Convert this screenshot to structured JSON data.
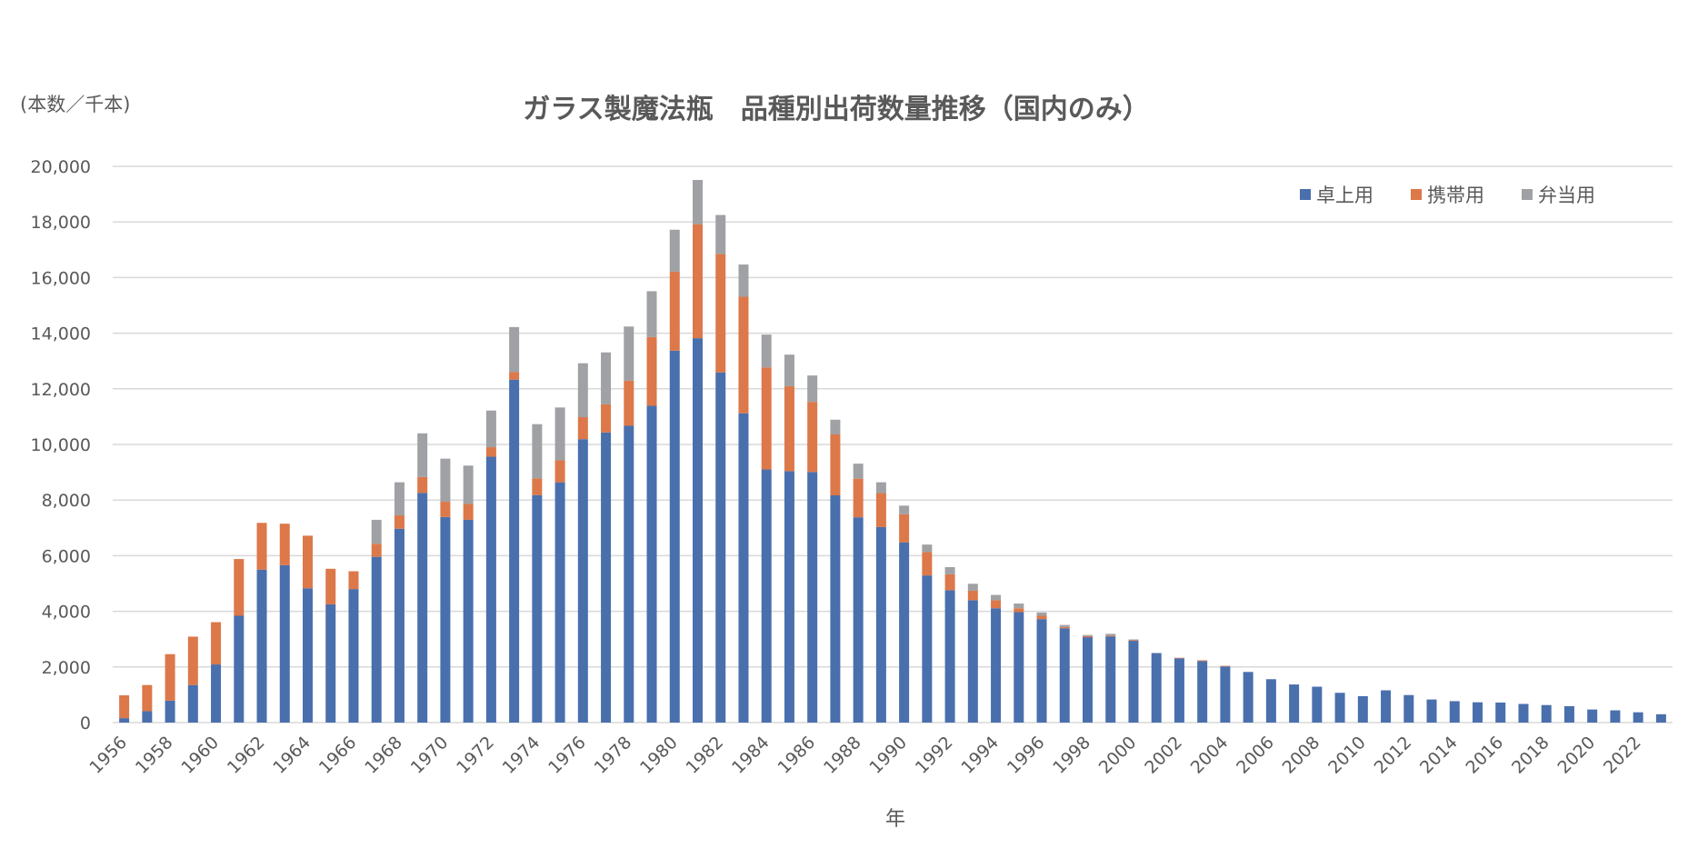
{
  "chart_data": {
    "type": "bar",
    "stacked": true,
    "title": "ガラス製魔法瓶　品種別出荷数量推移（国内のみ）",
    "ylabel": "(本数／千本)",
    "xlabel": "年",
    "ylim": [
      0,
      20000
    ],
    "yticks": [
      "0",
      "2,000",
      "4,000",
      "6,000",
      "8,000",
      "10,000",
      "12,000",
      "14,000",
      "16,000",
      "18,000",
      "20,000"
    ],
    "grid": true,
    "legend_position": "top-right",
    "categories": [
      1956,
      1957,
      1958,
      1959,
      1960,
      1961,
      1962,
      1963,
      1964,
      1965,
      1966,
      1967,
      1968,
      1969,
      1970,
      1971,
      1972,
      1973,
      1974,
      1975,
      1976,
      1977,
      1978,
      1979,
      1980,
      1981,
      1982,
      1983,
      1984,
      1985,
      1986,
      1987,
      1988,
      1989,
      1990,
      1991,
      1992,
      1993,
      1994,
      1995,
      1996,
      1997,
      1998,
      1999,
      2000,
      2001,
      2002,
      2003,
      2004,
      2005,
      2006,
      2007,
      2008,
      2009,
      2010,
      2011,
      2012,
      2013,
      2014,
      2015,
      2016,
      2017,
      2018,
      2019,
      2020,
      2021,
      2022,
      2023
    ],
    "series": [
      {
        "name": "卓上用",
        "color": "#4a6fad",
        "values": [
          160,
          410,
          790,
          1350,
          2090,
          3840,
          5500,
          5660,
          4830,
          4250,
          4800,
          5960,
          6970,
          8260,
          7390,
          7290,
          9560,
          12330,
          8180,
          8640,
          10190,
          10430,
          10670,
          11390,
          13370,
          13820,
          12590,
          11120,
          9100,
          9040,
          9010,
          8170,
          7380,
          7030,
          6480,
          5290,
          4760,
          4400,
          4110,
          3970,
          3720,
          3390,
          3070,
          3100,
          2940,
          2500,
          2310,
          2210,
          2020,
          1820,
          1560,
          1370,
          1290,
          1070,
          950,
          1160,
          990,
          830,
          770,
          730,
          720,
          670,
          630,
          590,
          470,
          440,
          370,
          300
        ]
      },
      {
        "name": "携帯用",
        "color": "#dc7849",
        "values": [
          820,
          940,
          1670,
          1740,
          1520,
          2040,
          1680,
          1490,
          1890,
          1280,
          640,
          470,
          480,
          570,
          550,
          570,
          340,
          270,
          600,
          790,
          790,
          1010,
          1620,
          2470,
          2840,
          4100,
          4260,
          4190,
          3670,
          3050,
          2520,
          2190,
          1390,
          1220,
          1010,
          840,
          570,
          340,
          290,
          140,
          120,
          50,
          40,
          30,
          30,
          0,
          20,
          30,
          20,
          0,
          0,
          0,
          0,
          0,
          0,
          0,
          0,
          0,
          0,
          0,
          0,
          0,
          0,
          0,
          0,
          0,
          0,
          0
        ]
      },
      {
        "name": "弁当用",
        "color": "#a0a1a4",
        "values": [
          0,
          0,
          0,
          0,
          0,
          0,
          0,
          0,
          0,
          0,
          0,
          860,
          1190,
          1570,
          1550,
          1380,
          1320,
          1620,
          1950,
          1900,
          1940,
          1870,
          1950,
          1650,
          1510,
          1590,
          1400,
          1160,
          1180,
          1140,
          950,
          530,
          540,
          390,
          310,
          270,
          260,
          250,
          190,
          170,
          120,
          70,
          40,
          60,
          20,
          0,
          0,
          0,
          0,
          0,
          0,
          0,
          0,
          0,
          0,
          0,
          0,
          0,
          0,
          0,
          0,
          0,
          0,
          0,
          0,
          0,
          0,
          0
        ]
      }
    ]
  }
}
